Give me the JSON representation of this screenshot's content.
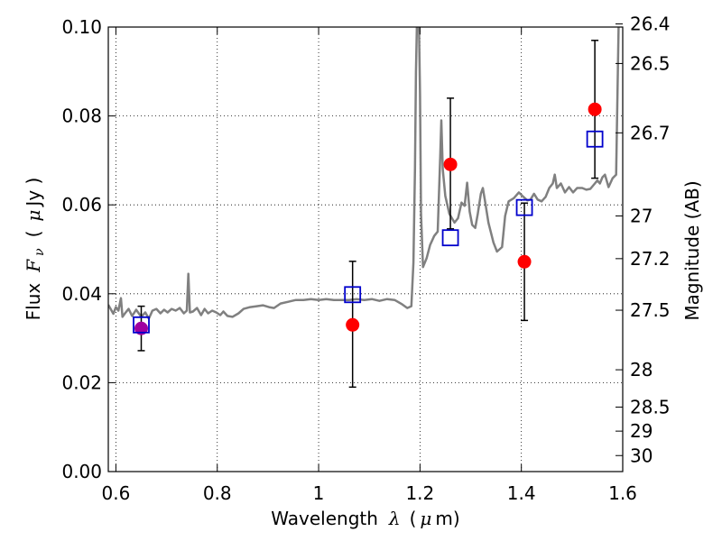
{
  "chart_data": {
    "type": "scatter",
    "xlim": [
      0.585,
      1.6
    ],
    "ylim": [
      0.0,
      0.1
    ],
    "grid": true,
    "x_ticks": [
      {
        "value": 0.6,
        "label": "0.6"
      },
      {
        "value": 0.8,
        "label": "0.8"
      },
      {
        "value": 1.0,
        "label": "1"
      },
      {
        "value": 1.2,
        "label": "1.2"
      },
      {
        "value": 1.4,
        "label": "1.4"
      },
      {
        "value": 1.6,
        "label": "1.6"
      }
    ],
    "y_ticks": [
      {
        "value": 0.0,
        "label": "0.00"
      },
      {
        "value": 0.02,
        "label": "0.02"
      },
      {
        "value": 0.04,
        "label": "0.04"
      },
      {
        "value": 0.06,
        "label": "0.06"
      },
      {
        "value": 0.08,
        "label": "0.08"
      },
      {
        "value": 0.1,
        "label": "0.10"
      }
    ],
    "right_ticks": [
      {
        "flux": 0.1007,
        "label": "26.4"
      },
      {
        "flux": 0.0918,
        "label": "26.5"
      },
      {
        "flux": 0.0762,
        "label": "26.7"
      },
      {
        "flux": 0.0575,
        "label": "27"
      },
      {
        "flux": 0.0479,
        "label": "27.2"
      },
      {
        "flux": 0.0363,
        "label": "27.5"
      },
      {
        "flux": 0.0229,
        "label": "28"
      },
      {
        "flux": 0.0145,
        "label": "28.5"
      },
      {
        "flux": 0.0091,
        "label": "29"
      },
      {
        "flux": 0.0036,
        "label": "30"
      }
    ],
    "xlabel_text": "Wavelength",
    "xlabel_symbol": "λ",
    "xlabel_unit_open": "(",
    "xlabel_mu": "μ",
    "xlabel_unit_rest": "m)",
    "ylabel_text": "Flux",
    "ylabel_symbol": "F",
    "ylabel_subscript": "ν",
    "ylabel_unit_open": "(",
    "ylabel_mu": "μ",
    "ylabel_unit_rest": "Jy )",
    "y2label": "Magnitude (AB)",
    "colors": {
      "spectrum": "#808080",
      "model": "#0000cc",
      "observed": "#ff0000",
      "errorbar": "#000000",
      "overlap": "#a000a0"
    },
    "spectrum": [
      [
        0.585,
        0.0375
      ],
      [
        0.595,
        0.0355
      ],
      [
        0.6,
        0.037
      ],
      [
        0.605,
        0.0362
      ],
      [
        0.61,
        0.039
      ],
      [
        0.613,
        0.0348
      ],
      [
        0.618,
        0.0356
      ],
      [
        0.625,
        0.0366
      ],
      [
        0.632,
        0.035
      ],
      [
        0.64,
        0.0364
      ],
      [
        0.65,
        0.0348
      ],
      [
        0.658,
        0.0358
      ],
      [
        0.665,
        0.0344
      ],
      [
        0.672,
        0.0362
      ],
      [
        0.68,
        0.0366
      ],
      [
        0.688,
        0.0356
      ],
      [
        0.695,
        0.0364
      ],
      [
        0.702,
        0.0358
      ],
      [
        0.71,
        0.0366
      ],
      [
        0.718,
        0.0362
      ],
      [
        0.726,
        0.0368
      ],
      [
        0.734,
        0.0356
      ],
      [
        0.74,
        0.0362
      ],
      [
        0.743,
        0.0445
      ],
      [
        0.746,
        0.0358
      ],
      [
        0.752,
        0.036
      ],
      [
        0.76,
        0.0368
      ],
      [
        0.768,
        0.0352
      ],
      [
        0.775,
        0.0366
      ],
      [
        0.782,
        0.0356
      ],
      [
        0.79,
        0.0362
      ],
      [
        0.798,
        0.0358
      ],
      [
        0.806,
        0.0352
      ],
      [
        0.812,
        0.036
      ],
      [
        0.82,
        0.035
      ],
      [
        0.83,
        0.0348
      ],
      [
        0.842,
        0.0356
      ],
      [
        0.852,
        0.0366
      ],
      [
        0.865,
        0.037
      ],
      [
        0.878,
        0.0372
      ],
      [
        0.89,
        0.0374
      ],
      [
        0.902,
        0.037
      ],
      [
        0.912,
        0.0368
      ],
      [
        0.925,
        0.0378
      ],
      [
        0.94,
        0.0382
      ],
      [
        0.955,
        0.0386
      ],
      [
        0.97,
        0.0386
      ],
      [
        0.985,
        0.0388
      ],
      [
        1.0,
        0.0386
      ],
      [
        1.015,
        0.0388
      ],
      [
        1.03,
        0.0386
      ],
      [
        1.045,
        0.0386
      ],
      [
        1.06,
        0.0386
      ],
      [
        1.075,
        0.0388
      ],
      [
        1.09,
        0.0386
      ],
      [
        1.105,
        0.0388
      ],
      [
        1.12,
        0.0384
      ],
      [
        1.135,
        0.0388
      ],
      [
        1.15,
        0.0386
      ],
      [
        1.165,
        0.0376
      ],
      [
        1.175,
        0.0368
      ],
      [
        1.183,
        0.0372
      ],
      [
        1.187,
        0.047
      ],
      [
        1.19,
        0.068
      ],
      [
        1.192,
        0.09
      ],
      [
        1.194,
        0.101
      ],
      [
        1.198,
        0.101
      ],
      [
        1.2,
        0.085
      ],
      [
        1.202,
        0.058
      ],
      [
        1.206,
        0.046
      ],
      [
        1.213,
        0.048
      ],
      [
        1.22,
        0.051
      ],
      [
        1.228,
        0.053
      ],
      [
        1.235,
        0.054
      ],
      [
        1.24,
        0.071
      ],
      [
        1.242,
        0.079
      ],
      [
        1.245,
        0.068
      ],
      [
        1.25,
        0.062
      ],
      [
        1.258,
        0.058
      ],
      [
        1.268,
        0.056
      ],
      [
        1.275,
        0.057
      ],
      [
        1.282,
        0.0605
      ],
      [
        1.288,
        0.0598
      ],
      [
        1.293,
        0.065
      ],
      [
        1.298,
        0.0585
      ],
      [
        1.303,
        0.0555
      ],
      [
        1.309,
        0.0548
      ],
      [
        1.314,
        0.058
      ],
      [
        1.32,
        0.0625
      ],
      [
        1.324,
        0.0638
      ],
      [
        1.328,
        0.061
      ],
      [
        1.335,
        0.056
      ],
      [
        1.345,
        0.0515
      ],
      [
        1.352,
        0.0495
      ],
      [
        1.362,
        0.0505
      ],
      [
        1.368,
        0.0575
      ],
      [
        1.375,
        0.0608
      ],
      [
        1.385,
        0.0615
      ],
      [
        1.395,
        0.0628
      ],
      [
        1.402,
        0.062
      ],
      [
        1.412,
        0.061
      ],
      [
        1.418,
        0.0612
      ],
      [
        1.425,
        0.0625
      ],
      [
        1.432,
        0.0612
      ],
      [
        1.44,
        0.0608
      ],
      [
        1.448,
        0.0618
      ],
      [
        1.455,
        0.0638
      ],
      [
        1.462,
        0.0648
      ],
      [
        1.466,
        0.0668
      ],
      [
        1.47,
        0.0638
      ],
      [
        1.478,
        0.0648
      ],
      [
        1.486,
        0.0628
      ],
      [
        1.494,
        0.064
      ],
      [
        1.502,
        0.0628
      ],
      [
        1.51,
        0.0638
      ],
      [
        1.52,
        0.0638
      ],
      [
        1.528,
        0.0634
      ],
      [
        1.536,
        0.0636
      ],
      [
        1.545,
        0.0648
      ],
      [
        1.55,
        0.0655
      ],
      [
        1.555,
        0.0648
      ],
      [
        1.56,
        0.0662
      ],
      [
        1.565,
        0.0668
      ],
      [
        1.572,
        0.064
      ],
      [
        1.58,
        0.066
      ],
      [
        1.587,
        0.0668
      ],
      [
        1.592,
        0.101
      ],
      [
        1.6,
        0.101
      ]
    ],
    "model_points": [
      {
        "x": 0.65,
        "y": 0.033
      },
      {
        "x": 1.067,
        "y": 0.0398
      },
      {
        "x": 1.26,
        "y": 0.0526
      },
      {
        "x": 1.406,
        "y": 0.0594
      },
      {
        "x": 1.545,
        "y": 0.0748
      }
    ],
    "observed_points": [
      {
        "x": 0.65,
        "y": 0.0322,
        "err_low": 0.005,
        "err_high": 0.005
      },
      {
        "x": 1.067,
        "y": 0.033,
        "err_low": 0.014,
        "err_high": 0.0143
      },
      {
        "x": 1.26,
        "y": 0.0691,
        "err_low": 0.0145,
        "err_high": 0.0149
      },
      {
        "x": 1.406,
        "y": 0.0472,
        "err_low": 0.0132,
        "err_high": 0.0132
      },
      {
        "x": 1.545,
        "y": 0.0815,
        "err_low": 0.0155,
        "err_high": 0.0155
      }
    ]
  }
}
